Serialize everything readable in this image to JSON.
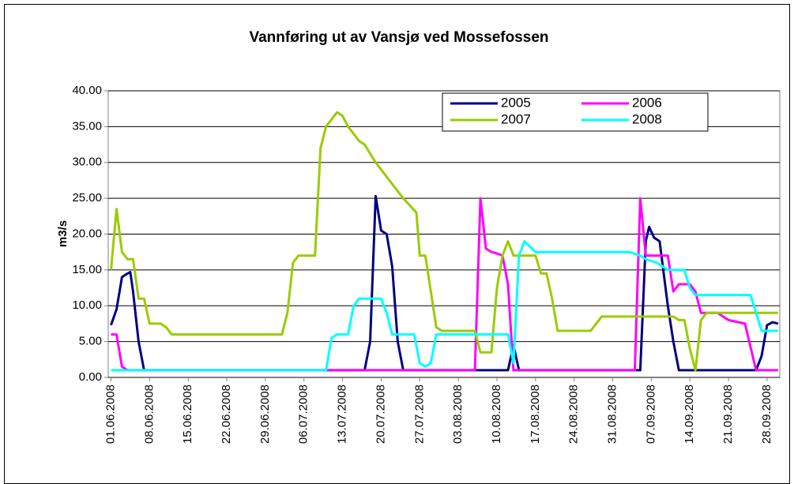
{
  "chart_data": {
    "type": "line",
    "title": "Vannføring ut av Vansjø ved Mossefossen",
    "y_label": "m3/s",
    "xlim": [
      -0.5,
      121.3
    ],
    "xticks": [
      {
        "value": 0,
        "label": "01.06.2008"
      },
      {
        "value": 7,
        "label": "08.06.2008"
      },
      {
        "value": 14,
        "label": "15.06.2008"
      },
      {
        "value": 21,
        "label": "22.06.2008"
      },
      {
        "value": 28,
        "label": "29.06.2008"
      },
      {
        "value": 35,
        "label": "06.07.2008"
      },
      {
        "value": 42,
        "label": "13.07.2008"
      },
      {
        "value": 49,
        "label": "20.07.2008"
      },
      {
        "value": 56,
        "label": "27.07.2008"
      },
      {
        "value": 63,
        "label": "03.08.2008"
      },
      {
        "value": 70,
        "label": "10.08.2008"
      },
      {
        "value": 77,
        "label": "17.08.2008"
      },
      {
        "value": 84,
        "label": "24.08.2008"
      },
      {
        "value": 91,
        "label": "31.08.2008"
      },
      {
        "value": 98,
        "label": "07.09.2008"
      },
      {
        "value": 105,
        "label": "14.09.2008"
      },
      {
        "value": 112,
        "label": "21.09.2008"
      },
      {
        "value": 119,
        "label": "28.09.2008"
      }
    ],
    "ylim": [
      0,
      40
    ],
    "yticks": [
      {
        "value": 0,
        "label": "0.00"
      },
      {
        "value": 5,
        "label": "5.00"
      },
      {
        "value": 10,
        "label": "10.00"
      },
      {
        "value": 15,
        "label": "15.00"
      },
      {
        "value": 20,
        "label": "20.00"
      },
      {
        "value": 25,
        "label": "25.00"
      },
      {
        "value": 30,
        "label": "30.00"
      },
      {
        "value": 35,
        "label": "35.00"
      },
      {
        "value": 40,
        "label": "40.00"
      }
    ],
    "grid": true,
    "series": [
      {
        "name": "2005",
        "color": "#000080",
        "x": [
          0,
          1,
          2,
          3,
          3.5,
          4,
          5,
          6,
          46,
          47,
          48,
          49,
          50,
          51,
          52,
          53,
          72,
          73,
          74,
          96,
          97,
          97.6,
          98.5,
          99.5,
          101,
          102,
          103,
          117,
          118,
          119,
          120,
          121
        ],
        "values": [
          7.3,
          9.5,
          14,
          14.5,
          14.7,
          12,
          5,
          1,
          1,
          5,
          25.3,
          20.5,
          20,
          15.5,
          5,
          1,
          1,
          4.5,
          1,
          1,
          19,
          21,
          19.5,
          19,
          10,
          5,
          1,
          1,
          3,
          7.3,
          7.7,
          7.5
        ]
      },
      {
        "name": "2006",
        "color": "#ff00ff",
        "x": [
          0,
          1,
          2,
          3,
          66,
          67,
          68,
          69,
          70,
          71,
          72,
          73,
          95,
          96,
          97,
          101,
          102,
          103,
          105,
          106,
          107,
          110,
          112,
          115,
          117,
          121
        ],
        "values": [
          6,
          6,
          1.5,
          1,
          1,
          25,
          18,
          17.5,
          17.3,
          17,
          13,
          1,
          1,
          25,
          17,
          17,
          12,
          13,
          13,
          12,
          9,
          9,
          8,
          7.5,
          1,
          1
        ]
      },
      {
        "name": "2007",
        "color": "#99cc00",
        "x": [
          0,
          1,
          2,
          3,
          4,
          5,
          6,
          7,
          9,
          10,
          11,
          31,
          32,
          33,
          34,
          37,
          38,
          39,
          40,
          41,
          42,
          43,
          44,
          45,
          46,
          48,
          51,
          53,
          55.4,
          56,
          57,
          58,
          59,
          60,
          66,
          67,
          69,
          70,
          71,
          72,
          73,
          77,
          78,
          79,
          80,
          81,
          87,
          88,
          89,
          102,
          103,
          104,
          105,
          106,
          107,
          108,
          121
        ],
        "values": [
          15,
          23.5,
          17.5,
          16.5,
          16.5,
          11,
          11,
          7.5,
          7.5,
          7,
          6,
          6,
          9,
          16,
          17,
          17,
          32,
          35,
          36,
          37,
          36.5,
          35,
          34,
          33,
          32.5,
          30,
          27,
          25,
          23,
          17,
          17,
          12,
          7,
          6.5,
          6.5,
          3.5,
          3.5,
          12.5,
          17,
          19,
          17,
          17,
          14.5,
          14.5,
          11,
          6.5,
          6.5,
          7.5,
          8.5,
          8.5,
          8,
          8,
          4,
          1,
          8,
          9,
          9
        ]
      },
      {
        "name": "2008",
        "color": "#00ffff",
        "x": [
          0,
          39,
          40,
          41,
          43,
          44,
          45,
          49,
          50,
          51,
          55,
          56,
          57,
          58,
          59,
          72,
          73,
          74,
          75,
          77,
          94,
          96,
          97,
          99,
          100,
          101,
          104,
          105,
          106,
          116,
          117,
          118,
          121
        ],
        "values": [
          1,
          1,
          5.5,
          6,
          6,
          10,
          11,
          11,
          9,
          6,
          6,
          2,
          1.5,
          2,
          6,
          6,
          2,
          17,
          19,
          17.5,
          17.5,
          17,
          16.5,
          16,
          15.5,
          15,
          15,
          12.5,
          11.5,
          11.5,
          9,
          6.5,
          6.5
        ]
      }
    ]
  }
}
